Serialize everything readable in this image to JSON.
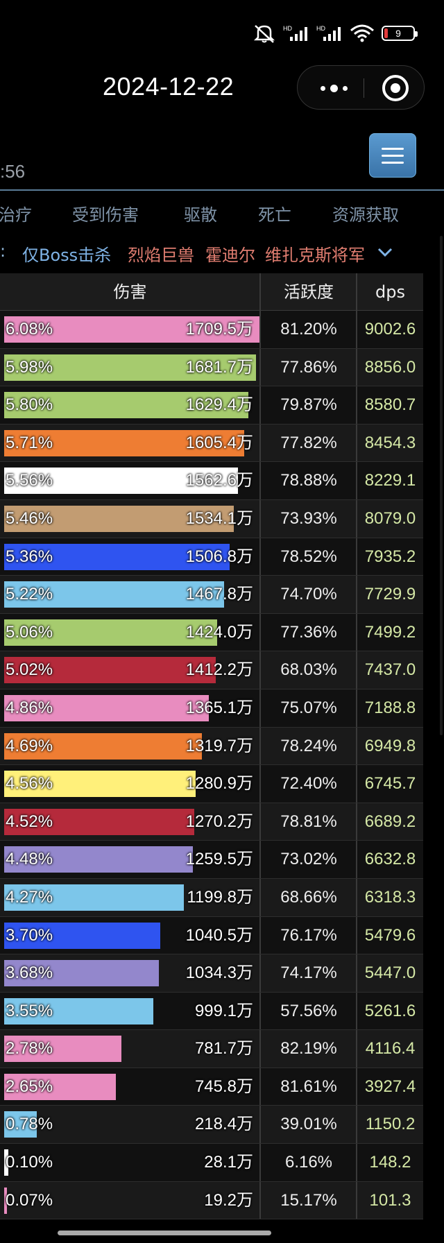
{
  "status": {
    "battery_level": "9",
    "signal_1": "HD",
    "signal_2": "HD"
  },
  "nav": {
    "title": "2024-12-22"
  },
  "time_fragment": ":56",
  "tabs": [
    "治疗",
    "受到伤害",
    "驱散",
    "死亡",
    "资源获取"
  ],
  "filter": {
    "prefix": ":",
    "all": "仅Boss击杀",
    "bosses": [
      "烈焰巨兽",
      "霍迪尔",
      "维扎克斯将军"
    ]
  },
  "table": {
    "headers": {
      "damage": "伤害",
      "activity": "活跃度",
      "dps": "dps"
    },
    "rows": [
      {
        "pct": "6.08%",
        "amount": "1709.5万",
        "activity": "81.20%",
        "dps": "9002.6",
        "color": "#e88cbf",
        "fill": 1.0
      },
      {
        "pct": "5.98%",
        "amount": "1681.7万",
        "activity": "77.86%",
        "dps": "8856.0",
        "color": "#a6cb6e",
        "fill": 0.983
      },
      {
        "pct": "5.80%",
        "amount": "1629.4万",
        "activity": "79.87%",
        "dps": "8580.7",
        "color": "#a6cb6e",
        "fill": 0.953
      },
      {
        "pct": "5.71%",
        "amount": "1605.4万",
        "activity": "77.82%",
        "dps": "8454.3",
        "color": "#ee7d33",
        "fill": 0.939
      },
      {
        "pct": "5.56%",
        "amount": "1562.6万",
        "activity": "78.88%",
        "dps": "8229.1",
        "color": "#ffffff",
        "fill": 0.914
      },
      {
        "pct": "5.46%",
        "amount": "1534.1万",
        "activity": "73.93%",
        "dps": "8079.0",
        "color": "#c29c72",
        "fill": 0.898
      },
      {
        "pct": "5.36%",
        "amount": "1506.8万",
        "activity": "78.52%",
        "dps": "7935.2",
        "color": "#2f54f0",
        "fill": 0.881
      },
      {
        "pct": "5.22%",
        "amount": "1467.8万",
        "activity": "74.70%",
        "dps": "7729.9",
        "color": "#7cc6ea",
        "fill": 0.859
      },
      {
        "pct": "5.06%",
        "amount": "1424.0万",
        "activity": "77.36%",
        "dps": "7499.2",
        "color": "#a6cb6e",
        "fill": 0.833
      },
      {
        "pct": "5.02%",
        "amount": "1412.2万",
        "activity": "68.03%",
        "dps": "7437.0",
        "color": "#b52a3b",
        "fill": 0.826
      },
      {
        "pct": "4.86%",
        "amount": "1365.1万",
        "activity": "75.07%",
        "dps": "7188.8",
        "color": "#e88cbf",
        "fill": 0.799
      },
      {
        "pct": "4.69%",
        "amount": "1319.7万",
        "activity": "78.24%",
        "dps": "6949.8",
        "color": "#ee7d33",
        "fill": 0.772
      },
      {
        "pct": "4.56%",
        "amount": "1280.9万",
        "activity": "72.40%",
        "dps": "6745.7",
        "color": "#fff07a",
        "fill": 0.749
      },
      {
        "pct": "4.52%",
        "amount": "1270.2万",
        "activity": "78.81%",
        "dps": "6689.2",
        "color": "#b52a3b",
        "fill": 0.743
      },
      {
        "pct": "4.48%",
        "amount": "1259.5万",
        "activity": "73.02%",
        "dps": "6632.8",
        "color": "#9387cc",
        "fill": 0.737
      },
      {
        "pct": "4.27%",
        "amount": "1199.8万",
        "activity": "68.66%",
        "dps": "6318.3",
        "color": "#7cc6ea",
        "fill": 0.702
      },
      {
        "pct": "3.70%",
        "amount": "1040.5万",
        "activity": "76.17%",
        "dps": "5479.6",
        "color": "#2f54f0",
        "fill": 0.609
      },
      {
        "pct": "3.68%",
        "amount": "1034.3万",
        "activity": "74.17%",
        "dps": "5447.0",
        "color": "#9387cc",
        "fill": 0.605
      },
      {
        "pct": "3.55%",
        "amount": "999.1万",
        "activity": "57.56%",
        "dps": "5261.6",
        "color": "#7cc6ea",
        "fill": 0.584
      },
      {
        "pct": "2.78%",
        "amount": "781.7万",
        "activity": "82.19%",
        "dps": "4116.4",
        "color": "#e88cbf",
        "fill": 0.457
      },
      {
        "pct": "2.65%",
        "amount": "745.8万",
        "activity": "81.61%",
        "dps": "3927.4",
        "color": "#e88cbf",
        "fill": 0.436
      },
      {
        "pct": "0.78%",
        "amount": "218.4万",
        "activity": "39.01%",
        "dps": "1150.2",
        "color": "#7cc6ea",
        "fill": 0.128
      },
      {
        "pct": "0.10%",
        "amount": "28.1万",
        "activity": "6.16%",
        "dps": "148.2",
        "color": "#ffffff",
        "fill": 0.016
      },
      {
        "pct": "0.07%",
        "amount": "19.2万",
        "activity": "15.17%",
        "dps": "101.3",
        "color": "#e88cbf",
        "fill": 0.011
      }
    ]
  }
}
